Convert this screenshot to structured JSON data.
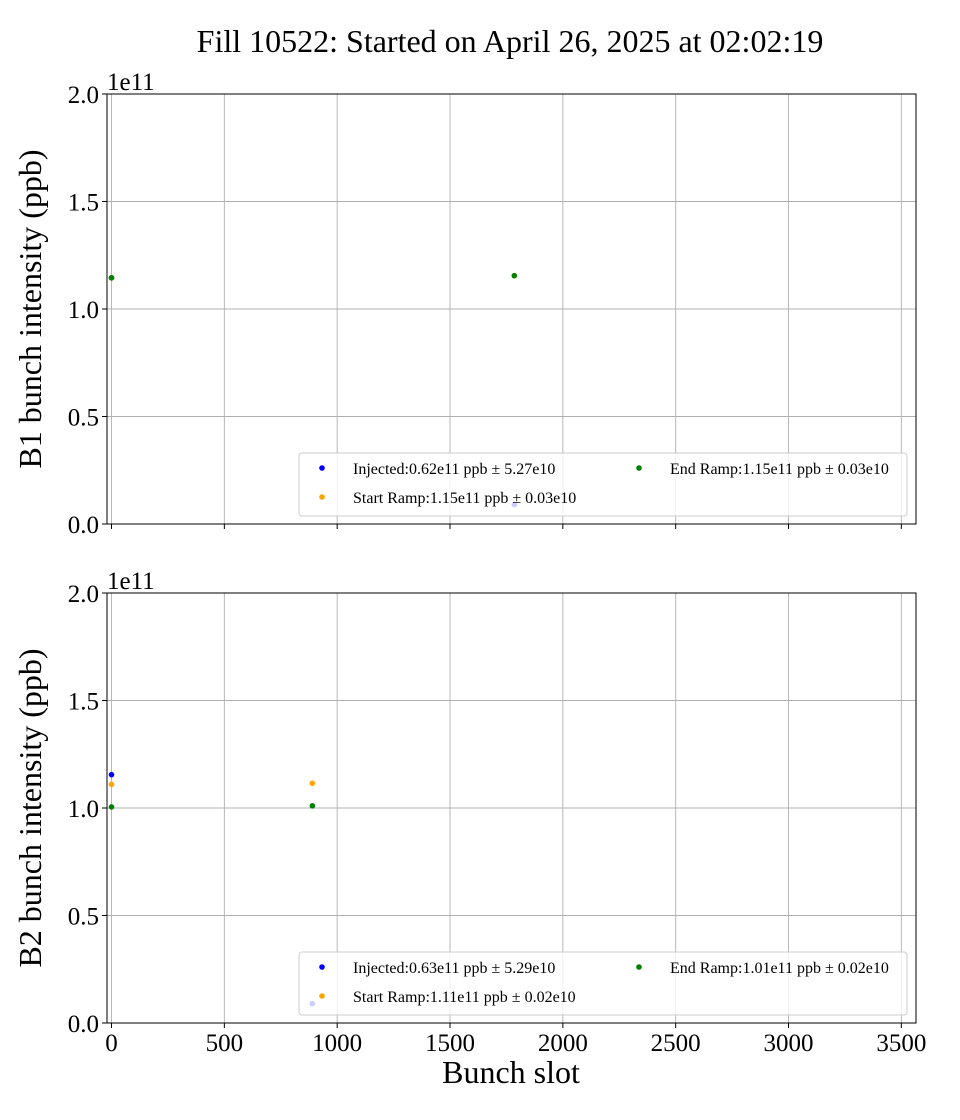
{
  "figure_title": "Fill 10522: Started on April 26, 2025 at 02:02:19",
  "xlabel": "Bunch slot",
  "colors": {
    "injected": "#0000ff",
    "start_ramp": "#ffa500",
    "end_ramp": "#008000",
    "grid": "#b0b0b0",
    "axis": "#000000"
  },
  "chart_data": [
    {
      "type": "scatter",
      "ylabel": "B1 bunch intensity (ppb)",
      "y_offset_label": "1e11",
      "xlim": [
        -20,
        3565
      ],
      "ylim": [
        0,
        200000000000.0
      ],
      "x_ticks": [
        0,
        500,
        1000,
        1500,
        2000,
        2500,
        3000,
        3500
      ],
      "y_ticks": [
        0,
        50000000000.0,
        100000000000.0,
        150000000000.0,
        200000000000.0
      ],
      "y_tick_labels": [
        "0.0",
        "0.5",
        "1.0",
        "1.5",
        "2.0"
      ],
      "grid": true,
      "legend": "lower right, 2 columns",
      "series": [
        {
          "name": "Injected:0.62e11 ppb ± 5.27e10",
          "color": "#0000ff",
          "x": [
            0,
            1785
          ],
          "y": [
            114500000000.0,
            9000000000.0
          ]
        },
        {
          "name": "Start Ramp:1.15e11 ppb ± 0.03e10",
          "color": "#ffa500",
          "x": [
            0,
            1785
          ],
          "y": [
            114500000000.0,
            115500000000.0
          ]
        },
        {
          "name": "End Ramp:1.15e11 ppb ± 0.03e10",
          "color": "#008000",
          "x": [
            0,
            1785
          ],
          "y": [
            114500000000.0,
            115500000000.0
          ]
        }
      ]
    },
    {
      "type": "scatter",
      "ylabel": "B2 bunch intensity (ppb)",
      "y_offset_label": "1e11",
      "xlim": [
        -20,
        3565
      ],
      "ylim": [
        0,
        200000000000.0
      ],
      "x_ticks": [
        0,
        500,
        1000,
        1500,
        2000,
        2500,
        3000,
        3500
      ],
      "x_tick_labels": [
        "0",
        "500",
        "1000",
        "1500",
        "2000",
        "2500",
        "3000",
        "3500"
      ],
      "y_ticks": [
        0,
        50000000000.0,
        100000000000.0,
        150000000000.0,
        200000000000.0
      ],
      "y_tick_labels": [
        "0.0",
        "0.5",
        "1.0",
        "1.5",
        "2.0"
      ],
      "grid": true,
      "legend": "lower right, 2 columns",
      "series": [
        {
          "name": "Injected:0.63e11 ppb ± 5.29e10",
          "color": "#0000ff",
          "x": [
            0,
            890
          ],
          "y": [
            115500000000.0,
            9000000000.0
          ]
        },
        {
          "name": "Start Ramp:1.11e11 ppb ± 0.02e10",
          "color": "#ffa500",
          "x": [
            0,
            890
          ],
          "y": [
            111000000000.0,
            111500000000.0
          ]
        },
        {
          "name": "End Ramp:1.01e11 ppb ± 0.02e10",
          "color": "#008000",
          "x": [
            0,
            890
          ],
          "y": [
            100500000000.0,
            101000000000.0
          ]
        }
      ]
    }
  ]
}
